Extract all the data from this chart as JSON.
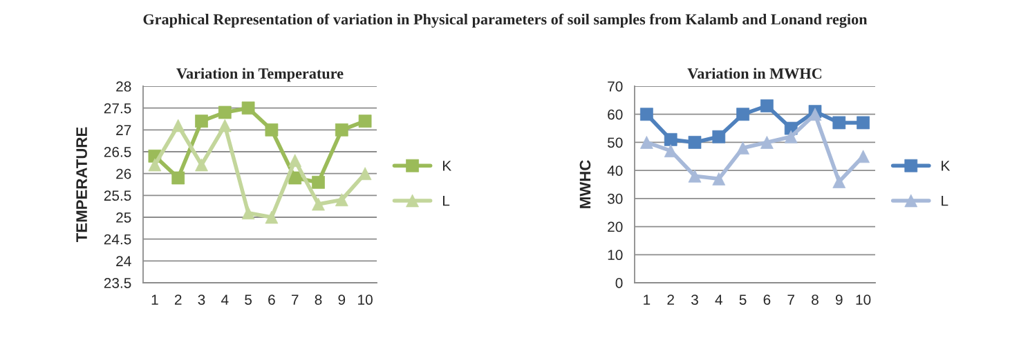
{
  "chart_data": [
    {
      "type": "line",
      "title": "Variation in Temperature",
      "ylabel": "TEMPERATURE",
      "annotations": [
        "Graphical Representation of variation in Physical parameters of soil samples from Kalamb and Lonand region"
      ],
      "categories": [
        "1",
        "2",
        "3",
        "4",
        "5",
        "6",
        "7",
        "8",
        "9",
        "10"
      ],
      "series": [
        {
          "name": "K",
          "color": "#9bbb59",
          "marker": "square",
          "values": [
            26.4,
            25.9,
            27.2,
            27.4,
            27.5,
            27.0,
            25.9,
            25.8,
            27.0,
            27.2
          ]
        },
        {
          "name": "L",
          "color": "#c3d69b",
          "marker": "triangle",
          "values": [
            26.2,
            27.1,
            26.2,
            27.1,
            25.1,
            25.0,
            26.3,
            25.3,
            25.4,
            26.0
          ]
        }
      ],
      "ylim": [
        23.5,
        28
      ],
      "yticks": [
        23.5,
        24,
        24.5,
        25,
        25.5,
        26,
        26.5,
        27,
        27.5,
        28
      ],
      "grid": "y",
      "legend": "right"
    },
    {
      "type": "line",
      "title": "Variation in MWHC",
      "ylabel": "MWHC",
      "categories": [
        "1",
        "2",
        "3",
        "4",
        "5",
        "6",
        "7",
        "8",
        "9",
        "10"
      ],
      "series": [
        {
          "name": "K",
          "color": "#4f81bd",
          "marker": "square",
          "values": [
            60,
            51,
            50,
            52,
            60,
            63,
            55,
            61,
            57,
            57
          ]
        },
        {
          "name": "L",
          "color": "#a7b9d9",
          "marker": "triangle",
          "values": [
            50,
            47,
            38,
            37,
            48,
            50,
            52,
            60,
            36,
            45
          ]
        }
      ],
      "ylim": [
        0,
        70
      ],
      "yticks": [
        0,
        10,
        20,
        30,
        40,
        50,
        60,
        70
      ],
      "grid": "y",
      "legend": "right"
    }
  ]
}
